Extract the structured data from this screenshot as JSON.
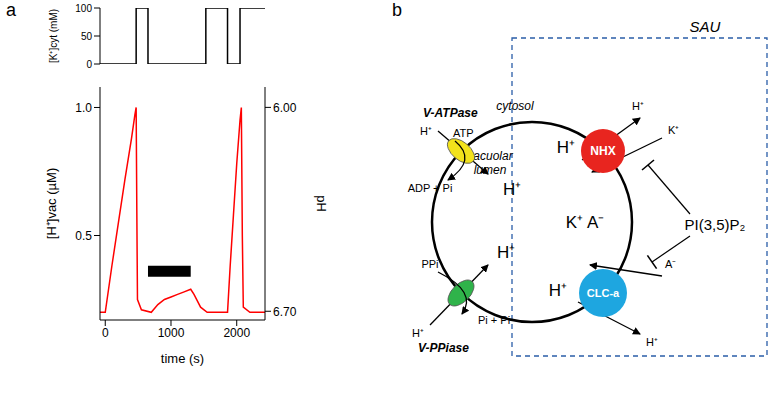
{
  "panel_labels": [
    "a",
    "b"
  ],
  "chart_data": [
    {
      "type": "line",
      "line_style": "step",
      "tick_labels": "y",
      "x": [
        -80,
        470,
        650,
        1530,
        1860,
        2050,
        2430
      ],
      "values": [
        0,
        100,
        0,
        100,
        0,
        100,
        100
      ],
      "color": "#000000",
      "xlim": [
        -80,
        2430
      ],
      "ylim": [
        0,
        100
      ],
      "yticks": [
        0,
        50,
        100
      ],
      "ylabel": "[K⁺]cyt (mM)"
    },
    {
      "type": "line",
      "line_style": "solid",
      "x": [
        -80,
        0,
        100,
        200,
        300,
        400,
        450,
        470,
        480,
        490,
        550,
        700,
        800,
        900,
        1000,
        1100,
        1200,
        1300,
        1350,
        1450,
        1550,
        1860,
        1900,
        1950,
        2000,
        2050,
        2070,
        2085,
        2100,
        2200,
        2430
      ],
      "values": [
        0.2,
        0.2,
        0.38,
        0.55,
        0.72,
        0.88,
        0.97,
        1.0,
        0.6,
        0.25,
        0.21,
        0.2,
        0.23,
        0.25,
        0.26,
        0.27,
        0.28,
        0.29,
        0.27,
        0.22,
        0.2,
        0.2,
        0.38,
        0.58,
        0.78,
        0.95,
        1.0,
        0.5,
        0.22,
        0.2,
        0.2
      ],
      "color": "#ff0000",
      "xlim": [
        -80,
        2430
      ],
      "xticks": [
        0,
        1000,
        2000
      ],
      "xlabel": "time (s)",
      "ylim": [
        0.17,
        1.08
      ],
      "yticks": [
        0.5,
        {
          "value": 1.0,
          "label": "1.0"
        }
      ],
      "ylabel": "[H⁺]vac (µM)",
      "y2lim": [
        6.73,
        5.93
      ],
      "y2ticks": [
        {
          "value": 6.0,
          "label": "6.00"
        },
        {
          "value": 6.7,
          "label": "6.70"
        }
      ],
      "y2label": "pH",
      "black_bar": {
        "x": [
          650,
          1300
        ],
        "y": 0.36,
        "color": "#000000"
      }
    }
  ],
  "diagram": {
    "box_label": "SAU",
    "outside_label": "cytosol",
    "inside_label": "vacuolar lumen",
    "pumps": [
      {
        "name": "V-ATPase",
        "fuel": "ATP",
        "products": "ADP + Pi",
        "ion": "H⁺",
        "color": "#f2e21b"
      },
      {
        "name": "V-PPiase",
        "fuel": "PPi",
        "products": "Pi + Pi",
        "ion": "H⁺",
        "color": "#2fb34a"
      }
    ],
    "exchangers": [
      {
        "name": "NHX",
        "color": "#e8251f",
        "ion_out": "H⁺",
        "ion_in": "K⁺"
      },
      {
        "name": "CLC-a",
        "color": "#1ea6e0",
        "ion_out": "H⁺",
        "ion_in": "A⁻"
      }
    ],
    "lumen_salt": "K⁺ A⁻",
    "regulator": "PI(3,5)P₂"
  }
}
